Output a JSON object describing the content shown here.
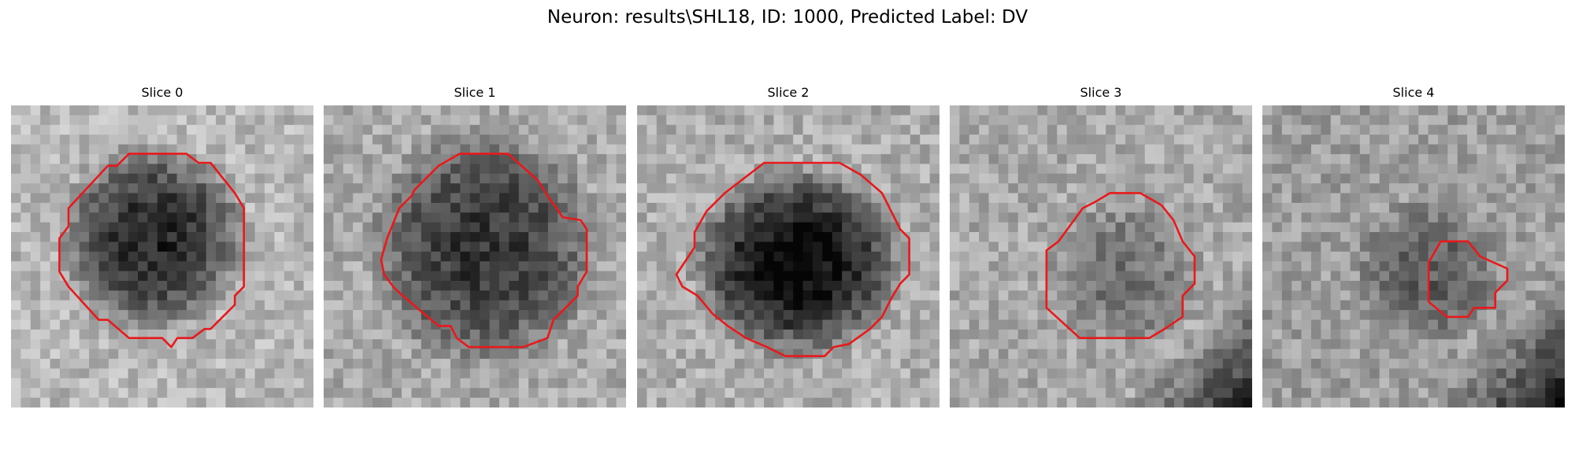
{
  "figure": {
    "title": "Neuron: results\\SHL18, ID: 1000, Predicted Label: DV",
    "outline_color": "#e8191b"
  },
  "slices": [
    {
      "title": "Slice 0"
    },
    {
      "title": "Slice 1"
    },
    {
      "title": "Slice 2"
    },
    {
      "title": "Slice 3"
    },
    {
      "title": "Slice 4"
    }
  ]
}
